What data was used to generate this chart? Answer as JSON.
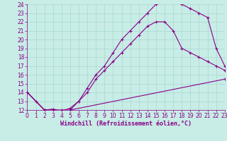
{
  "xlabel": "Windchill (Refroidissement éolien,°C)",
  "bg_color": "#c8ece6",
  "grid_color": "#a8d8d0",
  "line_color": "#880088",
  "xmin": 0,
  "xmax": 23,
  "ymin": 12,
  "ymax": 24,
  "line1_x": [
    0,
    1,
    2,
    3,
    4,
    5,
    6,
    7,
    8,
    9,
    10,
    11,
    12,
    13,
    14,
    15,
    16,
    17,
    18,
    19,
    20,
    21,
    22,
    23
  ],
  "line1_y": [
    14.0,
    13.0,
    12.0,
    12.0,
    11.8,
    12.0,
    13.0,
    14.5,
    16.0,
    17.0,
    18.5,
    20.0,
    21.0,
    22.0,
    23.0,
    24.0,
    24.3,
    24.5,
    24.0,
    23.5,
    23.0,
    22.5,
    19.0,
    17.0
  ],
  "line2_x": [
    0,
    2,
    3,
    4,
    5,
    6,
    7,
    8,
    9,
    10,
    11,
    12,
    13,
    14,
    15,
    16,
    17,
    18,
    19,
    20,
    21,
    22,
    23
  ],
  "line2_y": [
    14.0,
    12.0,
    12.1,
    11.9,
    12.2,
    13.0,
    14.0,
    15.5,
    16.5,
    17.5,
    18.5,
    19.5,
    20.5,
    21.5,
    22.0,
    22.0,
    21.0,
    19.0,
    18.5,
    18.0,
    17.5,
    17.0,
    16.5
  ],
  "line3_x": [
    0,
    2,
    3,
    4,
    5,
    23
  ],
  "line3_y": [
    14.0,
    12.0,
    12.0,
    12.0,
    12.0,
    15.5
  ],
  "tick_fontsize": 5.5,
  "label_fontsize": 6.0
}
